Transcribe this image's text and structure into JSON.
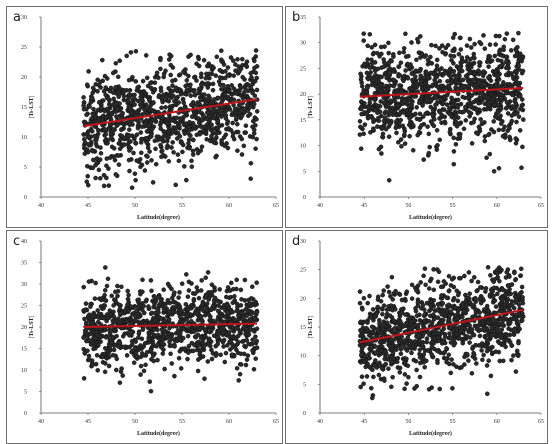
{
  "chart_data": [
    {
      "panel_label": "a",
      "type": "scatter",
      "xlabel": "Latitude(degree)",
      "ylabel": "|Ts-LST|",
      "xlim": [
        40,
        65
      ],
      "ylim": [
        0,
        30
      ],
      "xticks": [
        40,
        45,
        50,
        55,
        60,
        65
      ],
      "yticks": [
        0,
        5,
        10,
        15,
        20,
        25,
        30
      ],
      "point_color": "#2a2a2a",
      "trend_color": "#c0141b",
      "trendline": {
        "x": [
          44.5,
          63
        ],
        "y": [
          11.8,
          16.3
        ]
      },
      "cloud": {
        "x_range": [
          44.5,
          63
        ],
        "y_center": [
          11.8,
          16.3
        ],
        "spread": 4.2,
        "y_min": 1,
        "y_max": 24.5
      }
    },
    {
      "panel_label": "b",
      "type": "scatter",
      "xlabel": "Latitude(degree)",
      "ylabel": "|Ts-LST|",
      "xlim": [
        40,
        65
      ],
      "ylim": [
        0,
        35
      ],
      "xticks": [
        40,
        45,
        50,
        55,
        60,
        65
      ],
      "yticks": [
        0,
        5,
        10,
        15,
        20,
        25,
        30,
        35
      ],
      "point_color": "#2a2a2a",
      "trend_color": "#c0141b",
      "trendline": {
        "x": [
          44.5,
          63
        ],
        "y": [
          19.5,
          21.2
        ]
      },
      "cloud": {
        "x_range": [
          44.5,
          63
        ],
        "y_center": [
          19.5,
          21.2
        ],
        "spread": 4.8,
        "y_min": 0.5,
        "y_max": 32
      }
    },
    {
      "panel_label": "c",
      "type": "scatter",
      "xlabel": "Latitude(degree)",
      "ylabel": "|Ts-LST|",
      "xlim": [
        40,
        65
      ],
      "ylim": [
        0,
        40
      ],
      "xticks": [
        40,
        45,
        50,
        55,
        60,
        65
      ],
      "yticks": [
        0,
        5,
        10,
        15,
        20,
        25,
        30,
        35,
        40
      ],
      "point_color": "#2a2a2a",
      "trend_color": "#c0141b",
      "trendline": {
        "x": [
          44.5,
          63
        ],
        "y": [
          20.0,
          20.8
        ]
      },
      "cloud": {
        "x_range": [
          44.5,
          63
        ],
        "y_center": [
          20.0,
          20.8
        ],
        "spread": 4.6,
        "y_min": 2,
        "y_max": 34.5
      }
    },
    {
      "panel_label": "d",
      "type": "scatter",
      "xlabel": "Latitude(degree)",
      "ylabel": "|Ts-LST|",
      "xlim": [
        40,
        65
      ],
      "ylim": [
        0,
        30
      ],
      "xticks": [
        40,
        45,
        50,
        55,
        60,
        65
      ],
      "yticks": [
        0,
        5,
        10,
        15,
        20,
        25,
        30
      ],
      "point_color": "#2a2a2a",
      "trend_color": "#c0141b",
      "trendline": {
        "x": [
          44.5,
          63
        ],
        "y": [
          12.3,
          18.0
        ]
      },
      "cloud": {
        "x_range": [
          44.5,
          63
        ],
        "y_center": [
          12.3,
          18.0
        ],
        "spread": 4.0,
        "y_min": 1,
        "y_max": 25.5
      }
    }
  ]
}
